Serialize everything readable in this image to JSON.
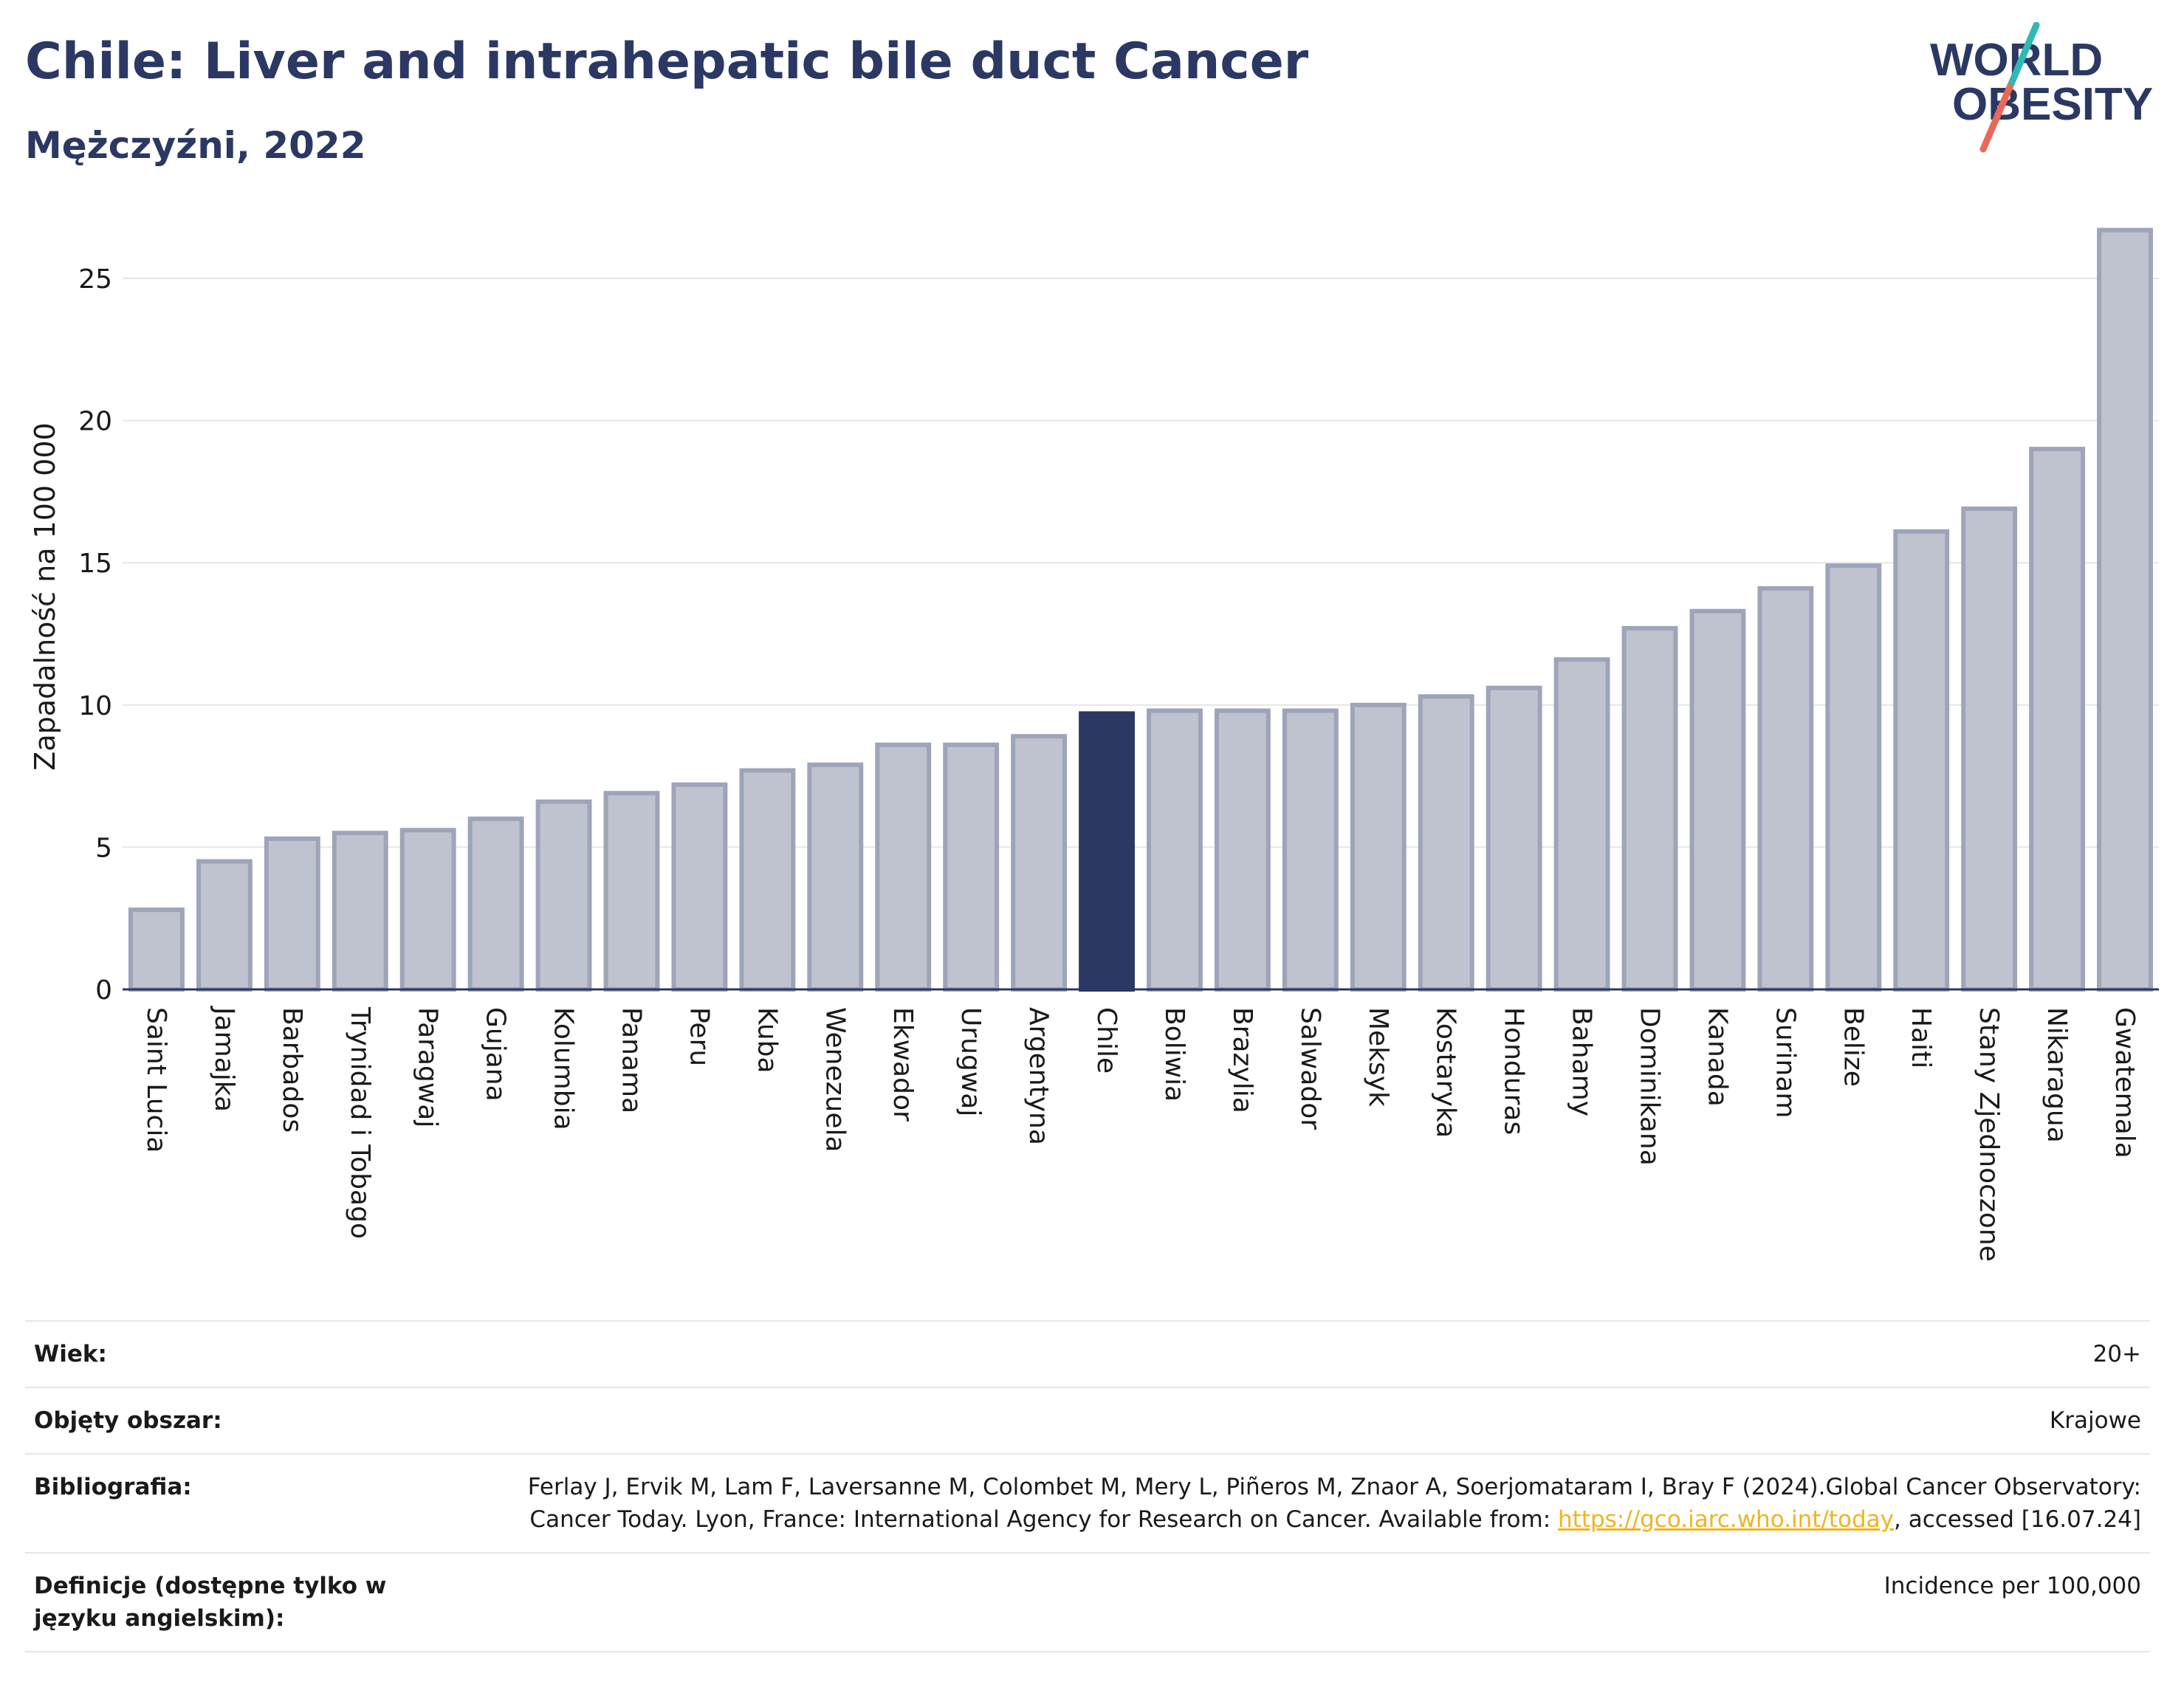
{
  "header": {
    "title": "Chile: Liver and intrahepatic bile duct Cancer",
    "subtitle": "Mężczyźni, 2022"
  },
  "logo": {
    "line1": "WORLD",
    "line2": "OBESITY",
    "color_text": "#2b3863",
    "color_slash_top": "#2fb8b4",
    "color_slash_bottom": "#e8685a"
  },
  "colors": {
    "bar": "#bfc3d0",
    "bar_stroke": "#9ea4b9",
    "highlight": "#2b3863",
    "grid": "#e6e6e6",
    "axis": "#2b3863"
  },
  "chart_data": {
    "type": "bar",
    "title": "Chile: Liver and intrahepatic bile duct Cancer",
    "subtitle": "Mężczyźni, 2022",
    "xlabel": "",
    "ylabel": "Zapadalność na 100 000",
    "ylim": [
      0,
      27
    ],
    "yticks": [
      0,
      5,
      10,
      15,
      20,
      25
    ],
    "grid": true,
    "highlight": "Chile",
    "categories": [
      "Saint Lucia",
      "Jamajka",
      "Barbados",
      "Trynidad i Tobago",
      "Paragwaj",
      "Gujana",
      "Kolumbia",
      "Panama",
      "Peru",
      "Kuba",
      "Wenezuela",
      "Ekwador",
      "Urugwaj",
      "Argentyna",
      "Chile",
      "Boliwia",
      "Brazylia",
      "Salwador",
      "Meksyk",
      "Kostaryka",
      "Honduras",
      "Bahamy",
      "Dominikana",
      "Kanada",
      "Surinam",
      "Belize",
      "Haiti",
      "Stany Zjednoczone",
      "Nikaragua",
      "Gwatemala"
    ],
    "values": [
      2.8,
      4.5,
      5.3,
      5.5,
      5.6,
      6.0,
      6.6,
      6.9,
      7.2,
      7.7,
      7.9,
      8.6,
      8.6,
      8.9,
      9.7,
      9.8,
      9.8,
      9.8,
      10.0,
      10.3,
      10.6,
      11.6,
      12.7,
      13.3,
      14.1,
      14.9,
      16.1,
      16.9,
      19.0,
      26.7
    ]
  },
  "meta": {
    "rows": [
      {
        "label": "Wiek:",
        "value": "20+"
      },
      {
        "label": "Objęty obszar:",
        "value": "Krajowe"
      },
      {
        "label": "Bibliografia:",
        "value_before": "Ferlay J, Ervik M, Lam F, Laversanne M, Colombet M, Mery L, Piñeros M, Znaor A, Soerjomataram I, Bray F (2024).Global Cancer Observatory: Cancer Today. Lyon, France: International Agency for Research on Cancer. Available from: ",
        "link": "https://gco.iarc.who.int/today",
        "value_after": ", accessed [16.07.24]"
      },
      {
        "label": "Definicje (dostępne tylko w języku angielskim):",
        "value": "Incidence per 100,000"
      }
    ]
  }
}
